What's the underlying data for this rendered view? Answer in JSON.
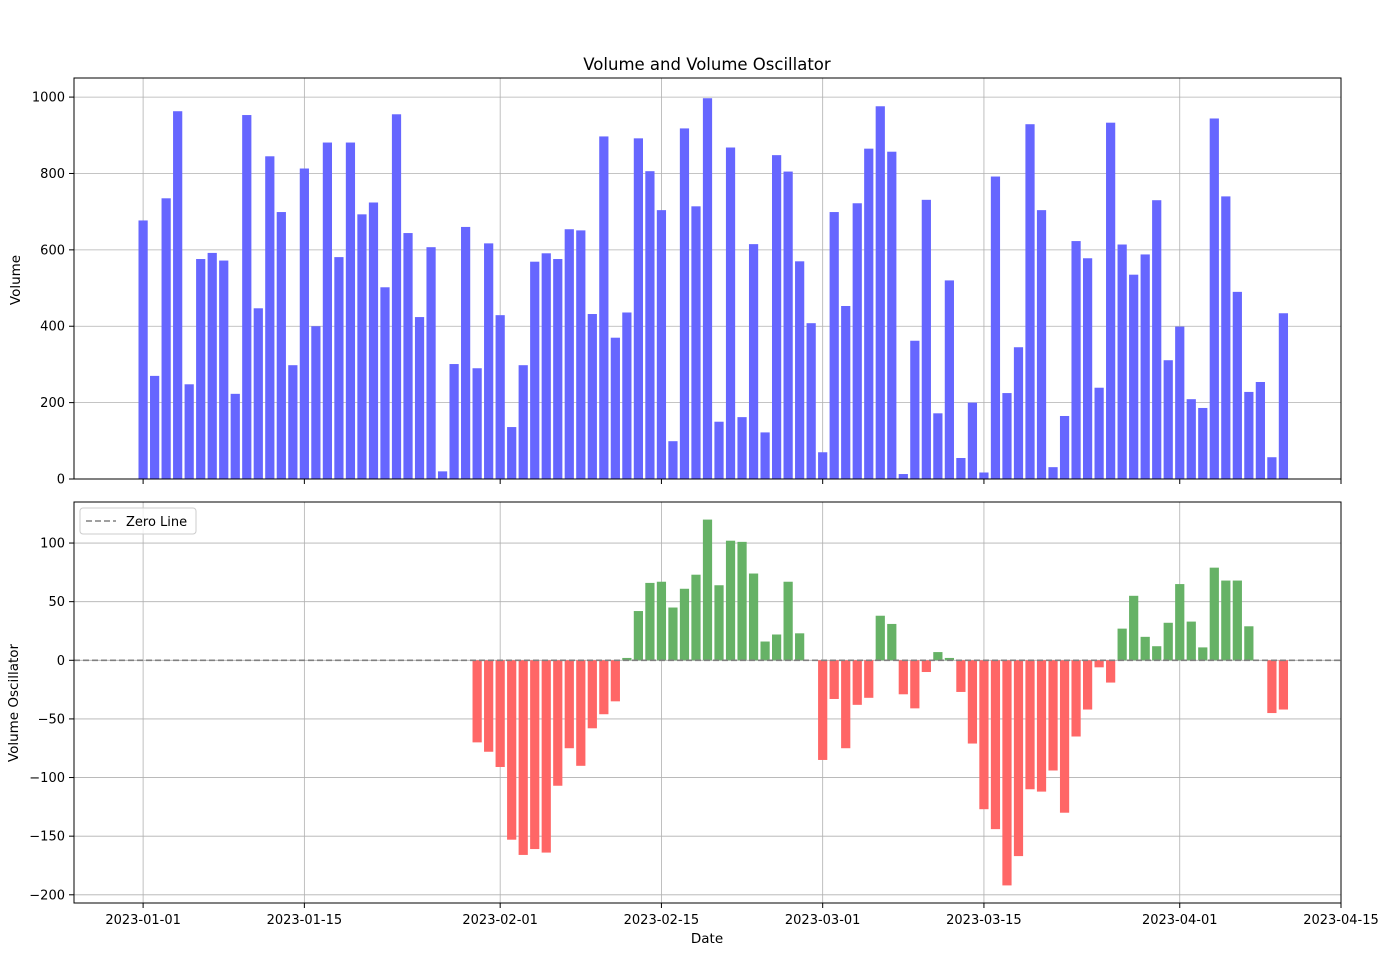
{
  "title": "Volume and Volume Oscillator",
  "chart_data": [
    {
      "type": "bar",
      "name": "volume",
      "title": "Volume and Volume Oscillator",
      "xlabel": "",
      "ylabel": "Volume",
      "ylim": [
        0,
        1050
      ],
      "yticks": [
        0,
        200,
        400,
        600,
        800,
        1000
      ],
      "grid": true,
      "bar_color": "#6666ff",
      "x_start": "2023-01-01",
      "x": [
        "2023-01-01",
        "2023-01-02",
        "2023-01-03",
        "2023-01-04",
        "2023-01-05",
        "2023-01-06",
        "2023-01-07",
        "2023-01-08",
        "2023-01-09",
        "2023-01-10",
        "2023-01-11",
        "2023-01-12",
        "2023-01-13",
        "2023-01-14",
        "2023-01-15",
        "2023-01-16",
        "2023-01-17",
        "2023-01-18",
        "2023-01-19",
        "2023-01-20",
        "2023-01-21",
        "2023-01-22",
        "2023-01-23",
        "2023-01-24",
        "2023-01-25",
        "2023-01-26",
        "2023-01-27",
        "2023-01-28",
        "2023-01-29",
        "2023-01-30",
        "2023-01-31",
        "2023-02-01",
        "2023-02-02",
        "2023-02-03",
        "2023-02-04",
        "2023-02-05",
        "2023-02-06",
        "2023-02-07",
        "2023-02-08",
        "2023-02-09",
        "2023-02-10",
        "2023-02-11",
        "2023-02-12",
        "2023-02-13",
        "2023-02-14",
        "2023-02-15",
        "2023-02-16",
        "2023-02-17",
        "2023-02-18",
        "2023-02-19",
        "2023-02-20",
        "2023-02-21",
        "2023-02-22",
        "2023-02-23",
        "2023-02-24",
        "2023-02-25",
        "2023-02-26",
        "2023-02-27",
        "2023-02-28",
        "2023-03-01",
        "2023-03-02",
        "2023-03-03",
        "2023-03-04",
        "2023-03-05",
        "2023-03-06",
        "2023-03-07",
        "2023-03-08",
        "2023-03-09",
        "2023-03-10",
        "2023-03-11",
        "2023-03-12",
        "2023-03-13",
        "2023-03-14",
        "2023-03-15",
        "2023-03-16",
        "2023-03-17",
        "2023-03-18",
        "2023-03-19",
        "2023-03-20",
        "2023-03-21",
        "2023-03-22",
        "2023-03-23",
        "2023-03-24",
        "2023-03-25",
        "2023-03-26",
        "2023-03-27",
        "2023-03-28",
        "2023-03-29",
        "2023-03-30",
        "2023-03-31",
        "2023-04-01",
        "2023-04-02",
        "2023-04-03",
        "2023-04-04",
        "2023-04-05",
        "2023-04-06",
        "2023-04-07",
        "2023-04-08",
        "2023-04-09",
        "2023-04-10"
      ],
      "values": [
        677,
        270,
        735,
        963,
        248,
        576,
        592,
        572,
        223,
        953,
        447,
        845,
        699,
        298,
        813,
        400,
        881,
        581,
        881,
        693,
        724,
        502,
        955,
        644,
        424,
        607,
        20,
        301,
        660,
        290,
        617,
        429,
        136,
        298,
        569,
        591,
        576,
        654,
        651,
        432,
        897,
        370,
        436,
        892,
        806,
        704,
        99,
        918,
        714,
        997,
        150,
        868,
        162,
        615,
        122,
        848,
        805,
        570,
        408,
        70,
        699,
        453,
        722,
        865,
        976,
        857,
        13,
        362,
        731,
        172,
        520,
        55,
        200,
        17,
        792,
        225,
        345,
        929,
        704,
        31,
        165,
        623,
        578,
        239,
        933,
        614,
        535,
        588,
        730,
        311,
        399,
        209,
        186,
        944,
        740,
        490,
        228,
        254,
        57,
        434
      ]
    },
    {
      "type": "bar",
      "name": "oscillator",
      "title": "",
      "xlabel": "Date",
      "ylabel": "Volume Oscillator",
      "ylim": [
        -207,
        135
      ],
      "yticks": [
        -200,
        -150,
        -100,
        -50,
        0,
        50,
        100
      ],
      "xticks": [
        "2023-01-01",
        "2023-01-15",
        "2023-02-01",
        "2023-02-15",
        "2023-03-01",
        "2023-03-15",
        "2023-04-01",
        "2023-04-15"
      ],
      "xlim": [
        "2022-12-26",
        "2023-04-15"
      ],
      "grid": true,
      "positive_color": "#66b266",
      "negative_color": "#ff6666",
      "legend": {
        "position": "top-left",
        "entries": [
          "Zero Line"
        ],
        "line_color": "#808080"
      },
      "x_start": "2023-01-01",
      "x": [
        "2023-01-01",
        "2023-01-02",
        "2023-01-03",
        "2023-01-04",
        "2023-01-05",
        "2023-01-06",
        "2023-01-07",
        "2023-01-08",
        "2023-01-09",
        "2023-01-10",
        "2023-01-11",
        "2023-01-12",
        "2023-01-13",
        "2023-01-14",
        "2023-01-15",
        "2023-01-16",
        "2023-01-17",
        "2023-01-18",
        "2023-01-19",
        "2023-01-20",
        "2023-01-21",
        "2023-01-22",
        "2023-01-23",
        "2023-01-24",
        "2023-01-25",
        "2023-01-26",
        "2023-01-27",
        "2023-01-28",
        "2023-01-29",
        "2023-01-30",
        "2023-01-31",
        "2023-02-01",
        "2023-02-02",
        "2023-02-03",
        "2023-02-04",
        "2023-02-05",
        "2023-02-06",
        "2023-02-07",
        "2023-02-08",
        "2023-02-09",
        "2023-02-10",
        "2023-02-11",
        "2023-02-12",
        "2023-02-13",
        "2023-02-14",
        "2023-02-15",
        "2023-02-16",
        "2023-02-17",
        "2023-02-18",
        "2023-02-19",
        "2023-02-20",
        "2023-02-21",
        "2023-02-22",
        "2023-02-23",
        "2023-02-24",
        "2023-02-25",
        "2023-02-26",
        "2023-02-27",
        "2023-02-28",
        "2023-03-01",
        "2023-03-02",
        "2023-03-03",
        "2023-03-04",
        "2023-03-05",
        "2023-03-06",
        "2023-03-07",
        "2023-03-08",
        "2023-03-09",
        "2023-03-10",
        "2023-03-11",
        "2023-03-12",
        "2023-03-13",
        "2023-03-14",
        "2023-03-15",
        "2023-03-16",
        "2023-03-17",
        "2023-03-18",
        "2023-03-19",
        "2023-03-20",
        "2023-03-21",
        "2023-03-22",
        "2023-03-23",
        "2023-03-24",
        "2023-03-25",
        "2023-03-26",
        "2023-03-27",
        "2023-03-28",
        "2023-03-29",
        "2023-03-30",
        "2023-03-31",
        "2023-04-01",
        "2023-04-02",
        "2023-04-03",
        "2023-04-04",
        "2023-04-05",
        "2023-04-06",
        "2023-04-07",
        "2023-04-08",
        "2023-04-09",
        "2023-04-10"
      ],
      "values": [
        null,
        null,
        null,
        null,
        null,
        null,
        null,
        null,
        null,
        null,
        null,
        null,
        null,
        null,
        null,
        null,
        null,
        null,
        null,
        null,
        null,
        null,
        null,
        null,
        null,
        null,
        null,
        null,
        null,
        -70,
        -78,
        -91,
        -153,
        -166,
        -161,
        -164,
        -107,
        -75,
        -90,
        -58,
        -46,
        -35,
        2,
        42,
        66,
        67,
        45,
        61,
        73,
        120,
        64,
        102,
        101,
        74,
        16,
        22,
        67,
        23,
        0,
        -85,
        -33,
        -75,
        -38,
        -32,
        38,
        31,
        -29,
        -41,
        -10,
        7,
        2,
        -27,
        -71,
        -127,
        -144,
        -192,
        -167,
        -110,
        -112,
        -94,
        -130,
        -65,
        -42,
        -6,
        -19,
        27,
        55,
        20,
        12,
        32,
        65,
        33,
        11,
        79,
        68,
        68,
        29,
        0,
        -45,
        -42
      ]
    }
  ]
}
